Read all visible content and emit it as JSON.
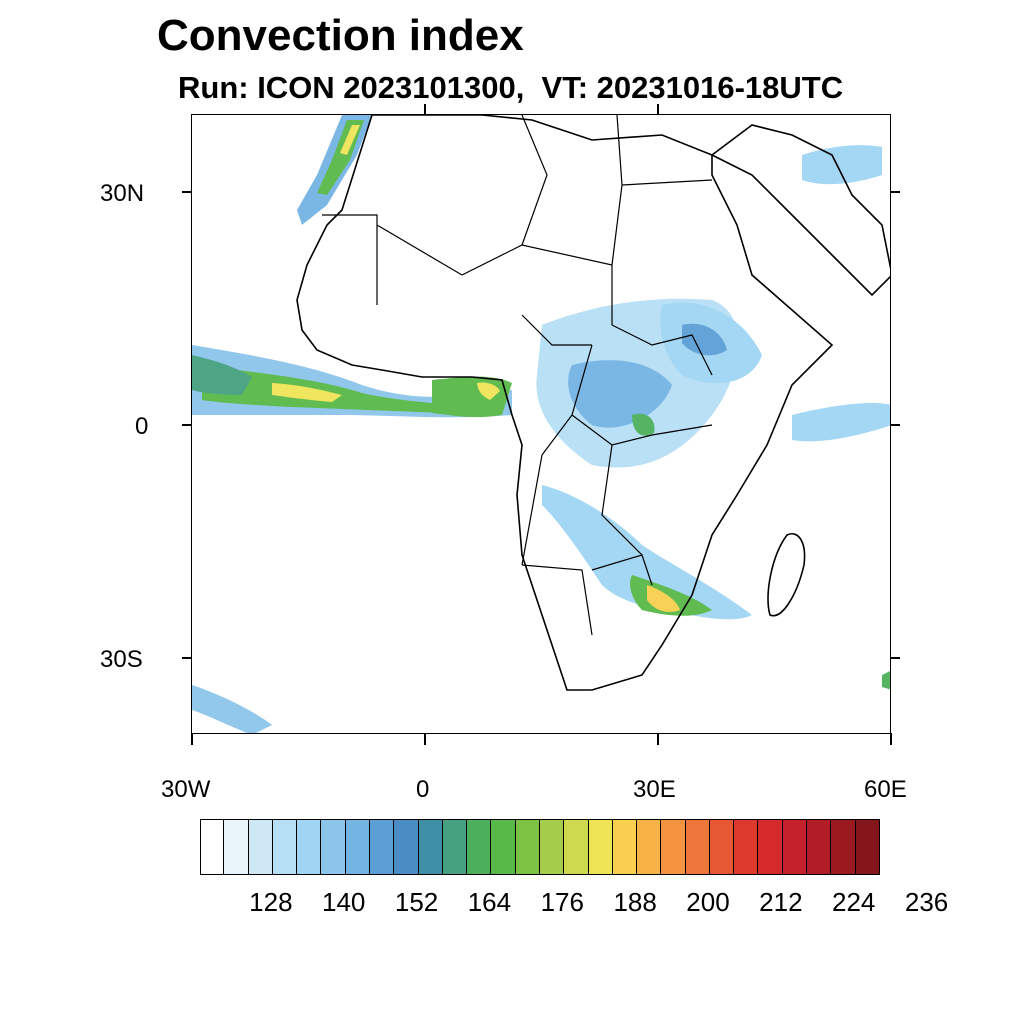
{
  "title": "Convection index",
  "subtitle": "Run: ICON 2023101300,  VT: 20231016-18UTC",
  "axes": {
    "lat_labels": [
      "30N",
      "0",
      "30S"
    ],
    "lon_labels": [
      "30W",
      "0",
      "30E",
      "60E"
    ],
    "lon_range": [
      -30,
      60
    ],
    "lat_range": [
      -40,
      40
    ]
  },
  "colorbar": {
    "labels": [
      "128",
      "140",
      "152",
      "164",
      "176",
      "188",
      "200",
      "212",
      "224",
      "236"
    ],
    "colors": [
      "#ffffff",
      "#e9f4fb",
      "#cfe8f6",
      "#b6dff5",
      "#9fd5f3",
      "#8cc5ea",
      "#74b4e3",
      "#5b9fd6",
      "#4a8cc4",
      "#3f8fa6",
      "#45a180",
      "#4caf5c",
      "#58b848",
      "#7dc243",
      "#a6cc4b",
      "#cfd94f",
      "#efe456",
      "#f8cf4f",
      "#f8b347",
      "#f49441",
      "#ef763a",
      "#e65733",
      "#dd3a2d",
      "#d42a2b",
      "#c4212a",
      "#b11d27",
      "#9a1a20",
      "#84161b"
    ]
  }
}
